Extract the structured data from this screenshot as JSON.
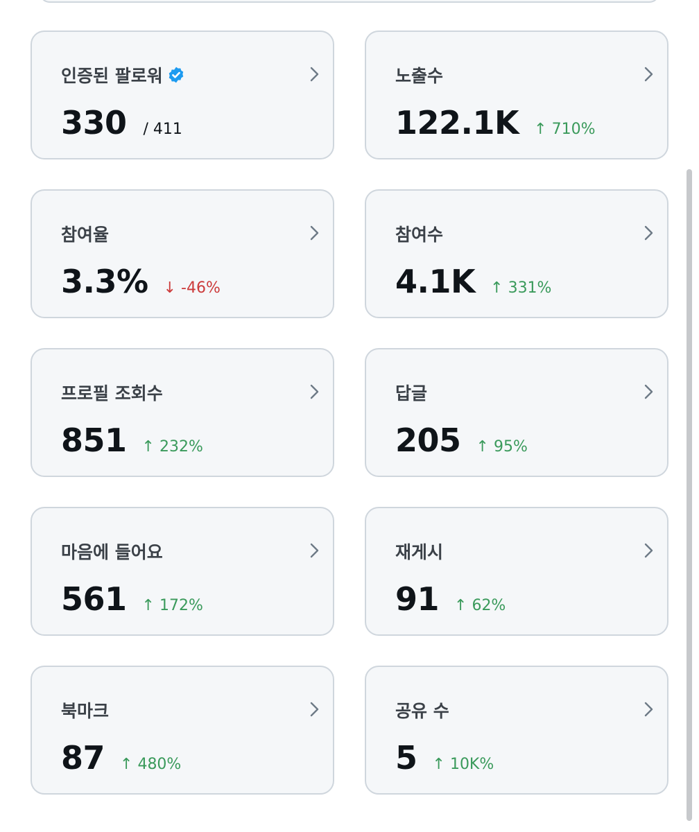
{
  "cards": [
    {
      "title": "인증된 팔로워",
      "value": "330",
      "suffix": "/ 411"
    },
    {
      "title": "노출수",
      "value": "122.1K",
      "delta": "↑ 710%"
    },
    {
      "title": "참여율",
      "value": "3.3%",
      "delta": "↓ -46%"
    },
    {
      "title": "참여수",
      "value": "4.1K",
      "delta": "↑ 331%"
    },
    {
      "title": "프로필 조회수",
      "value": "851",
      "delta": "↑ 232%"
    },
    {
      "title": "답글",
      "value": "205",
      "delta": "↑ 95%"
    },
    {
      "title": "마음에 들어요",
      "value": "561",
      "delta": "↑ 172%"
    },
    {
      "title": "재게시",
      "value": "91",
      "delta": "↑ 62%"
    },
    {
      "title": "북마크",
      "value": "87",
      "delta": "↑ 480%"
    },
    {
      "title": "공유 수",
      "value": "5",
      "delta": "↑ 10K%"
    }
  ],
  "colors": {
    "card_bg": "#f5f7f9",
    "card_border": "#cfd6dd",
    "positive": "#3a9a5b",
    "negative": "#cc3b3b",
    "verified": "#1d9bf0"
  },
  "icons": {
    "verified": "verified-badge-icon",
    "chevron": "chevron-right-icon"
  }
}
